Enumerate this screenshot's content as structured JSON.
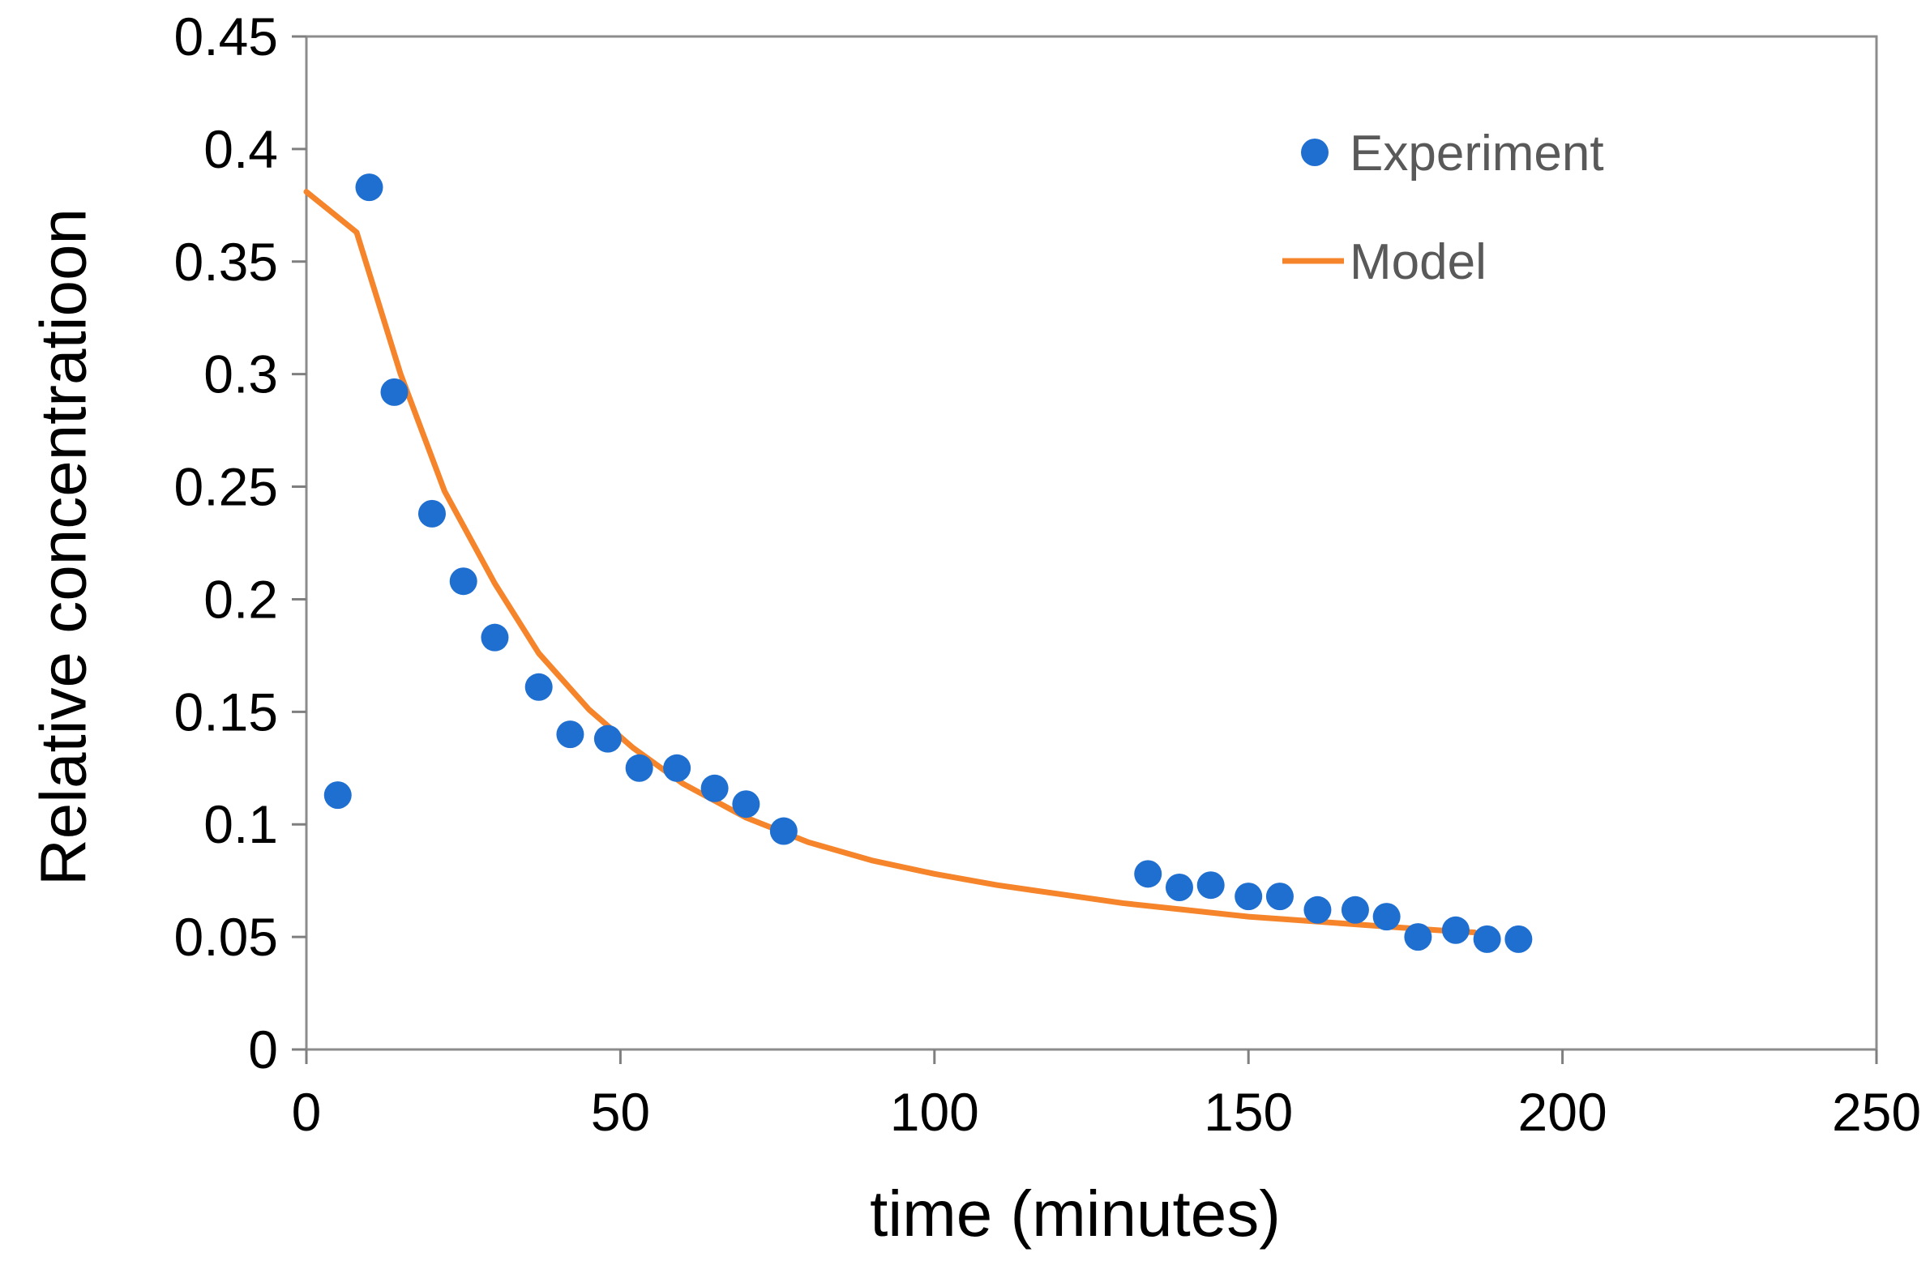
{
  "chart_data": {
    "type": "scatter",
    "title": "",
    "xlabel": "time (minutes)",
    "ylabel": "Relative concentratioon",
    "xlim": [
      0,
      250
    ],
    "ylim": [
      0,
      0.45
    ],
    "xticks": [
      0,
      50,
      100,
      150,
      200,
      250
    ],
    "xtick_labels": [
      "0",
      "50",
      "100",
      "150",
      "200",
      "250"
    ],
    "yticks": [
      0,
      0.05,
      0.1,
      0.15,
      0.2,
      0.25,
      0.3,
      0.35,
      0.4,
      0.45
    ],
    "ytick_labels": [
      "0",
      "0.05",
      "0.1",
      "0.15",
      "0.2",
      "0.25",
      "0.3",
      "0.35",
      "0.4",
      "0.45"
    ],
    "grid": false,
    "legend_position": "top-right",
    "colors": {
      "experiment": "#1f6fd1",
      "model": "#f5842a",
      "axis": "#7f7f7f",
      "frame": "#8c8c8c",
      "legend_text": "#595959"
    },
    "series": [
      {
        "name": "Experiment",
        "kind": "scatter",
        "x": [
          5,
          10,
          14,
          20,
          25,
          30,
          37,
          42,
          48,
          53,
          59,
          65,
          70,
          76,
          134,
          139,
          144,
          150,
          155,
          161,
          167,
          172,
          177,
          183,
          188,
          193
        ],
        "y": [
          0.113,
          0.383,
          0.292,
          0.238,
          0.208,
          0.183,
          0.161,
          0.14,
          0.138,
          0.125,
          0.125,
          0.116,
          0.109,
          0.097,
          0.078,
          0.072,
          0.073,
          0.068,
          0.068,
          0.062,
          0.062,
          0.059,
          0.05,
          0.053,
          0.049,
          0.049
        ]
      },
      {
        "name": "Model",
        "kind": "line",
        "x": [
          0,
          8,
          15,
          22,
          30,
          37,
          45,
          52,
          60,
          70,
          80,
          90,
          100,
          110,
          120,
          130,
          140,
          150,
          160,
          170,
          180,
          186
        ],
        "y": [
          0.381,
          0.363,
          0.3,
          0.248,
          0.207,
          0.176,
          0.151,
          0.134,
          0.118,
          0.103,
          0.092,
          0.084,
          0.078,
          0.073,
          0.069,
          0.065,
          0.062,
          0.059,
          0.057,
          0.055,
          0.053,
          0.052
        ]
      }
    ]
  }
}
